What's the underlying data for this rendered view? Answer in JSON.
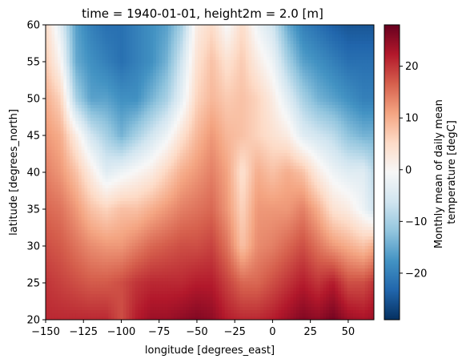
{
  "chart_data": {
    "type": "heatmap",
    "title": "time = 1940-01-01, height2m = 2.0 [m]",
    "xlabel": "longitude [degrees_east]",
    "ylabel": "latitude [degrees_north]",
    "colorbar_label_lines": [
      "Monthly mean of daily mean",
      "temperature [degC]"
    ],
    "colormap": "RdBu_r",
    "color_stops": [
      "#053061",
      "#2166ac",
      "#4393c3",
      "#92c5de",
      "#d1e5f0",
      "#f7f7f7",
      "#fddbc7",
      "#f4a582",
      "#d6604d",
      "#b2182b",
      "#67001f"
    ],
    "xlim": [
      -150,
      67
    ],
    "ylim": [
      20,
      60
    ],
    "clim": [
      -29,
      28
    ],
    "x_ticks": [
      -150,
      -125,
      -100,
      -75,
      -50,
      -25,
      0,
      25,
      50
    ],
    "y_ticks": [
      20,
      25,
      30,
      35,
      40,
      45,
      50,
      55,
      60
    ],
    "colorbar_ticks": [
      -20,
      -10,
      0,
      10,
      20
    ],
    "grid": false,
    "temperature_grid": {
      "longitudes": [
        -150,
        -140,
        -130,
        -120,
        -110,
        -100,
        -90,
        -80,
        -70,
        -60,
        -50,
        -40,
        -30,
        -20,
        -10,
        0,
        10,
        20,
        30,
        40,
        50,
        60,
        67
      ],
      "latitudes": [
        60,
        55,
        50,
        45,
        40,
        35,
        30,
        25,
        20
      ],
      "values_degC": [
        [
          5,
          -4,
          -16,
          -20,
          -22,
          -22,
          -20,
          -18,
          -16,
          -10,
          2,
          5,
          -1,
          5,
          -2,
          -6,
          -15,
          -20,
          -22,
          -24,
          -25,
          -25,
          -25
        ],
        [
          7,
          0,
          -15,
          -18,
          -20,
          -22,
          -20,
          -18,
          -14,
          -6,
          4,
          8,
          4,
          7,
          2,
          -2,
          -10,
          -16,
          -18,
          -20,
          -22,
          -22,
          -22
        ],
        [
          10,
          6,
          -10,
          -16,
          -16,
          -18,
          -18,
          -14,
          -10,
          -3,
          6,
          9,
          7,
          8,
          6,
          2,
          -4,
          -10,
          -14,
          -16,
          -18,
          -20,
          -20
        ],
        [
          12,
          10,
          2,
          -6,
          -10,
          -14,
          -10,
          -6,
          -2,
          4,
          9,
          12,
          9,
          8,
          6,
          4,
          2,
          -4,
          -6,
          -8,
          -12,
          -14,
          -14
        ],
        [
          14,
          12,
          8,
          2,
          -4,
          -2,
          0,
          2,
          6,
          10,
          12,
          14,
          11,
          4,
          10,
          8,
          10,
          8,
          2,
          -2,
          -4,
          -4,
          -8
        ],
        [
          16,
          15,
          12,
          8,
          6,
          8,
          8,
          10,
          12,
          14,
          15,
          16,
          12,
          6,
          12,
          12,
          12,
          14,
          10,
          4,
          2,
          -2,
          -6
        ],
        [
          18,
          17,
          15,
          13,
          12,
          12,
          14,
          16,
          17,
          18,
          18,
          19,
          15,
          8,
          13,
          14,
          16,
          18,
          15,
          12,
          10,
          8,
          10
        ],
        [
          20,
          19,
          18,
          17,
          17,
          18,
          20,
          21,
          21,
          21,
          22,
          22,
          19,
          16,
          16,
          18,
          20,
          22,
          20,
          22,
          18,
          18,
          20
        ],
        [
          21,
          21,
          21,
          21,
          21,
          18,
          22,
          24,
          24,
          25,
          26,
          25,
          22,
          21,
          21,
          22,
          24,
          26,
          25,
          27,
          24,
          23,
          24
        ]
      ]
    }
  }
}
